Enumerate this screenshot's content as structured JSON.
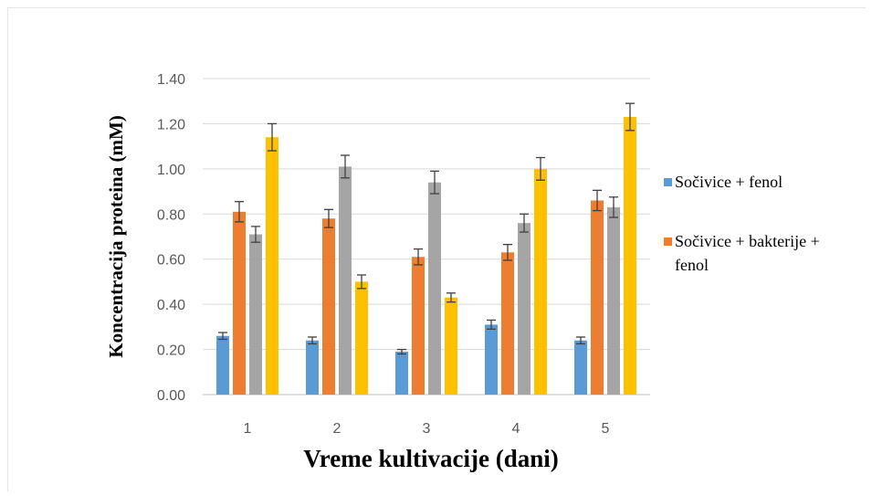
{
  "chart_data": {
    "type": "bar",
    "xlabel": "Vreme kultivacije (dani)",
    "ylabel": "Koncentracija proteina (mM)",
    "ylim": [
      0,
      1.4
    ],
    "yticks": [
      "0.00",
      "0.20",
      "0.40",
      "0.60",
      "0.80",
      "1.00",
      "1.20",
      "1.40"
    ],
    "categories": [
      "1",
      "2",
      "3",
      "4",
      "5"
    ],
    "grid": true,
    "legend_position": "right",
    "series": [
      {
        "name": "Sočivice + fenol",
        "color": "#5b9bd5",
        "values": [
          0.26,
          0.24,
          0.19,
          0.31,
          0.24
        ],
        "errors": [
          0.015,
          0.015,
          0.01,
          0.02,
          0.015
        ]
      },
      {
        "name": "Sočivice + bakterije + fenol",
        "color": "#ed7d31",
        "values": [
          0.81,
          0.78,
          0.61,
          0.63,
          0.86
        ],
        "errors": [
          0.045,
          0.04,
          0.035,
          0.035,
          0.045
        ]
      },
      {
        "name": "",
        "color": "#a5a5a5",
        "values": [
          0.71,
          1.01,
          0.94,
          0.76,
          0.83
        ],
        "errors": [
          0.035,
          0.05,
          0.05,
          0.04,
          0.045
        ]
      },
      {
        "name": "",
        "color": "#ffc000",
        "values": [
          1.14,
          0.5,
          0.43,
          1.0,
          1.23
        ],
        "errors": [
          0.06,
          0.03,
          0.02,
          0.05,
          0.06
        ]
      }
    ],
    "legend": {
      "item1_label": "Sočivice + fenol",
      "item2_line1": "Sočivice + bakterije +",
      "item2_line2": "fenol"
    }
  }
}
